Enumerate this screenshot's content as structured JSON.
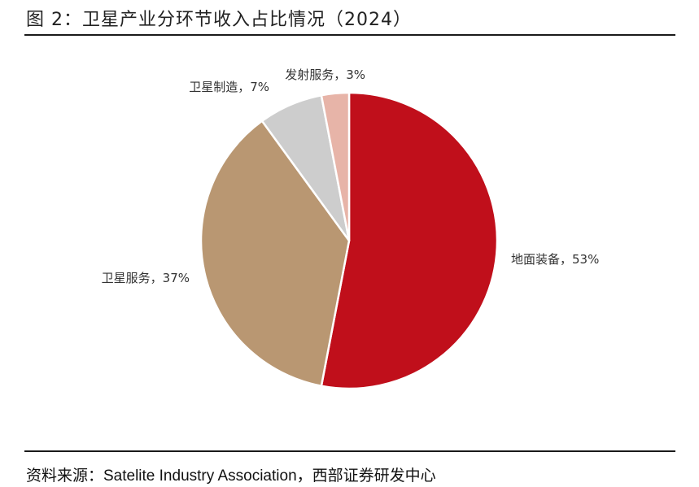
{
  "title": "图 2：卫星产业分环节收入占比情况（2024）",
  "source": "资料来源：Satelite Industry Association，西部证券研发中心",
  "chart_data": {
    "type": "pie",
    "start_angle_deg": 0,
    "direction": "clockwise",
    "slices": [
      {
        "label": "地面装备，53%",
        "name": "地面装备",
        "value": 53,
        "color": "#c00f1b"
      },
      {
        "label": "卫星服务，37%",
        "name": "卫星服务",
        "value": 37,
        "color": "#b99772"
      },
      {
        "label": "卫星制造，7%",
        "name": "卫星制造",
        "value": 7,
        "color": "#cdcdcd"
      },
      {
        "label": "发射服务，3%",
        "name": "发射服务",
        "value": 3,
        "color": "#e7b4a8"
      }
    ]
  }
}
